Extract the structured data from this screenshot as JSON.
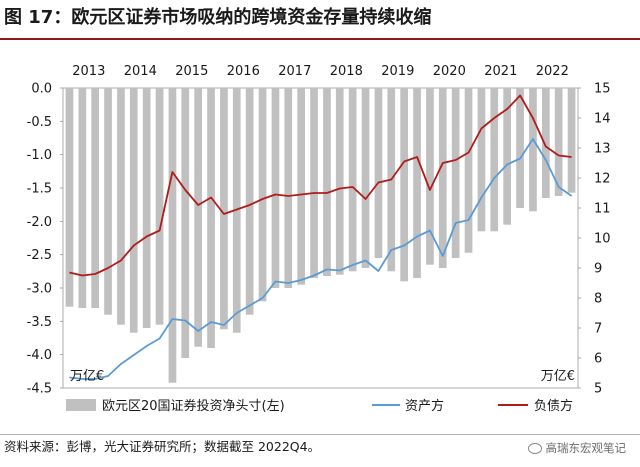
{
  "title": "图 17：欧元区证券市场吸纳的跨境资金存量持续收缩",
  "source_note": "资料来源：彭博，光大证券研究所；数据截至 2022Q4。",
  "watermark": "高瑞东宏观笔记",
  "chart_data": {
    "type": "bar+line",
    "x_ticks": [
      "2013",
      "2014",
      "2015",
      "2016",
      "2017",
      "2018",
      "2019",
      "2020",
      "2021",
      "2022"
    ],
    "left_axis": {
      "unit": "万亿€",
      "ylim": [
        -4.5,
        0.0
      ],
      "ticks": [
        "0.0",
        "-0.5",
        "-1.0",
        "-1.5",
        "-2.0",
        "-2.5",
        "-3.0",
        "-3.5",
        "-4.0",
        "-4.5"
      ]
    },
    "right_axis": {
      "unit": "万亿€",
      "ylim": [
        5,
        15
      ],
      "ticks": [
        "15",
        "14",
        "13",
        "12",
        "11",
        "10",
        "9",
        "8",
        "7",
        "6",
        "5"
      ]
    },
    "legend": [
      "欧元区20国证券投资净头寸(左)",
      "资产方",
      "负债方"
    ],
    "colors": {
      "bars": "#c0c0c0",
      "assets": "#5b9bd5",
      "liabilities": "#b01c1c"
    },
    "quarters": [
      "2013Q1",
      "2013Q2",
      "2013Q3",
      "2013Q4",
      "2014Q1",
      "2014Q2",
      "2014Q3",
      "2014Q4",
      "2015Q1",
      "2015Q2",
      "2015Q3",
      "2015Q4",
      "2016Q1",
      "2016Q2",
      "2016Q3",
      "2016Q4",
      "2017Q1",
      "2017Q2",
      "2017Q3",
      "2017Q4",
      "2018Q1",
      "2018Q2",
      "2018Q3",
      "2018Q4",
      "2019Q1",
      "2019Q2",
      "2019Q3",
      "2019Q4",
      "2020Q1",
      "2020Q2",
      "2020Q3",
      "2020Q4",
      "2021Q1",
      "2021Q2",
      "2021Q3",
      "2021Q4",
      "2022Q1",
      "2022Q2",
      "2022Q3",
      "2022Q4"
    ],
    "series": [
      {
        "name": "欧元区20国证券投资净头寸(左)",
        "axis": "left",
        "kind": "bar",
        "values": [
          -3.28,
          -3.3,
          -3.3,
          -3.4,
          -3.55,
          -3.67,
          -3.6,
          -3.55,
          -4.42,
          -4.05,
          -3.88,
          -3.9,
          -3.62,
          -3.67,
          -3.4,
          -3.2,
          -3.0,
          -3.0,
          -2.95,
          -2.85,
          -2.82,
          -2.8,
          -2.75,
          -2.7,
          -2.55,
          -2.75,
          -2.9,
          -2.85,
          -2.65,
          -2.7,
          -2.55,
          -2.47,
          -2.15,
          -2.15,
          -2.05,
          -1.8,
          -1.85,
          -1.65,
          -1.62,
          -1.57
        ]
      },
      {
        "name": "资产方",
        "axis": "right",
        "kind": "line",
        "values": [
          5.35,
          5.3,
          5.3,
          5.4,
          5.8,
          6.1,
          6.4,
          6.65,
          7.3,
          7.25,
          6.9,
          7.2,
          7.1,
          7.5,
          7.75,
          8.0,
          8.55,
          8.5,
          8.6,
          8.75,
          8.95,
          8.92,
          9.1,
          9.25,
          8.9,
          9.6,
          9.75,
          10.05,
          10.25,
          9.4,
          10.5,
          10.6,
          11.35,
          12.0,
          12.45,
          12.65,
          13.3,
          12.6,
          11.7,
          11.4
        ]
      },
      {
        "name": "负债方",
        "axis": "right",
        "kind": "line",
        "values": [
          8.85,
          8.75,
          8.8,
          9.0,
          9.25,
          9.75,
          10.05,
          10.25,
          12.2,
          11.6,
          11.1,
          11.35,
          10.8,
          10.95,
          11.1,
          11.3,
          11.45,
          11.4,
          11.45,
          11.5,
          11.5,
          11.65,
          11.7,
          11.3,
          11.85,
          11.95,
          12.55,
          12.7,
          11.6,
          12.5,
          12.6,
          12.85,
          13.65,
          14.0,
          14.3,
          14.75,
          14.0,
          13.05,
          12.75,
          12.7
        ]
      }
    ]
  }
}
